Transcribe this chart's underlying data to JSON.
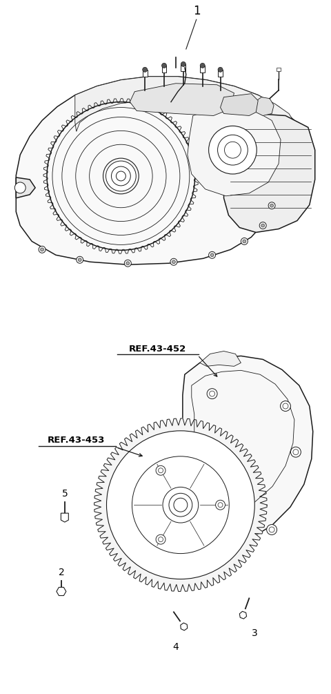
{
  "bg_color": "#ffffff",
  "fig_width": 4.8,
  "fig_height": 10.05,
  "dpi": 100,
  "label1": "1",
  "label2": "2",
  "label3": "3",
  "label4": "4",
  "label5": "5",
  "ref452": "REF.43-452",
  "ref453": "REF.43-453",
  "label_color": "#000000",
  "line_color": "#1a1a1a",
  "lw_main": 1.1,
  "lw_thin": 0.6,
  "lw_thick": 1.5
}
